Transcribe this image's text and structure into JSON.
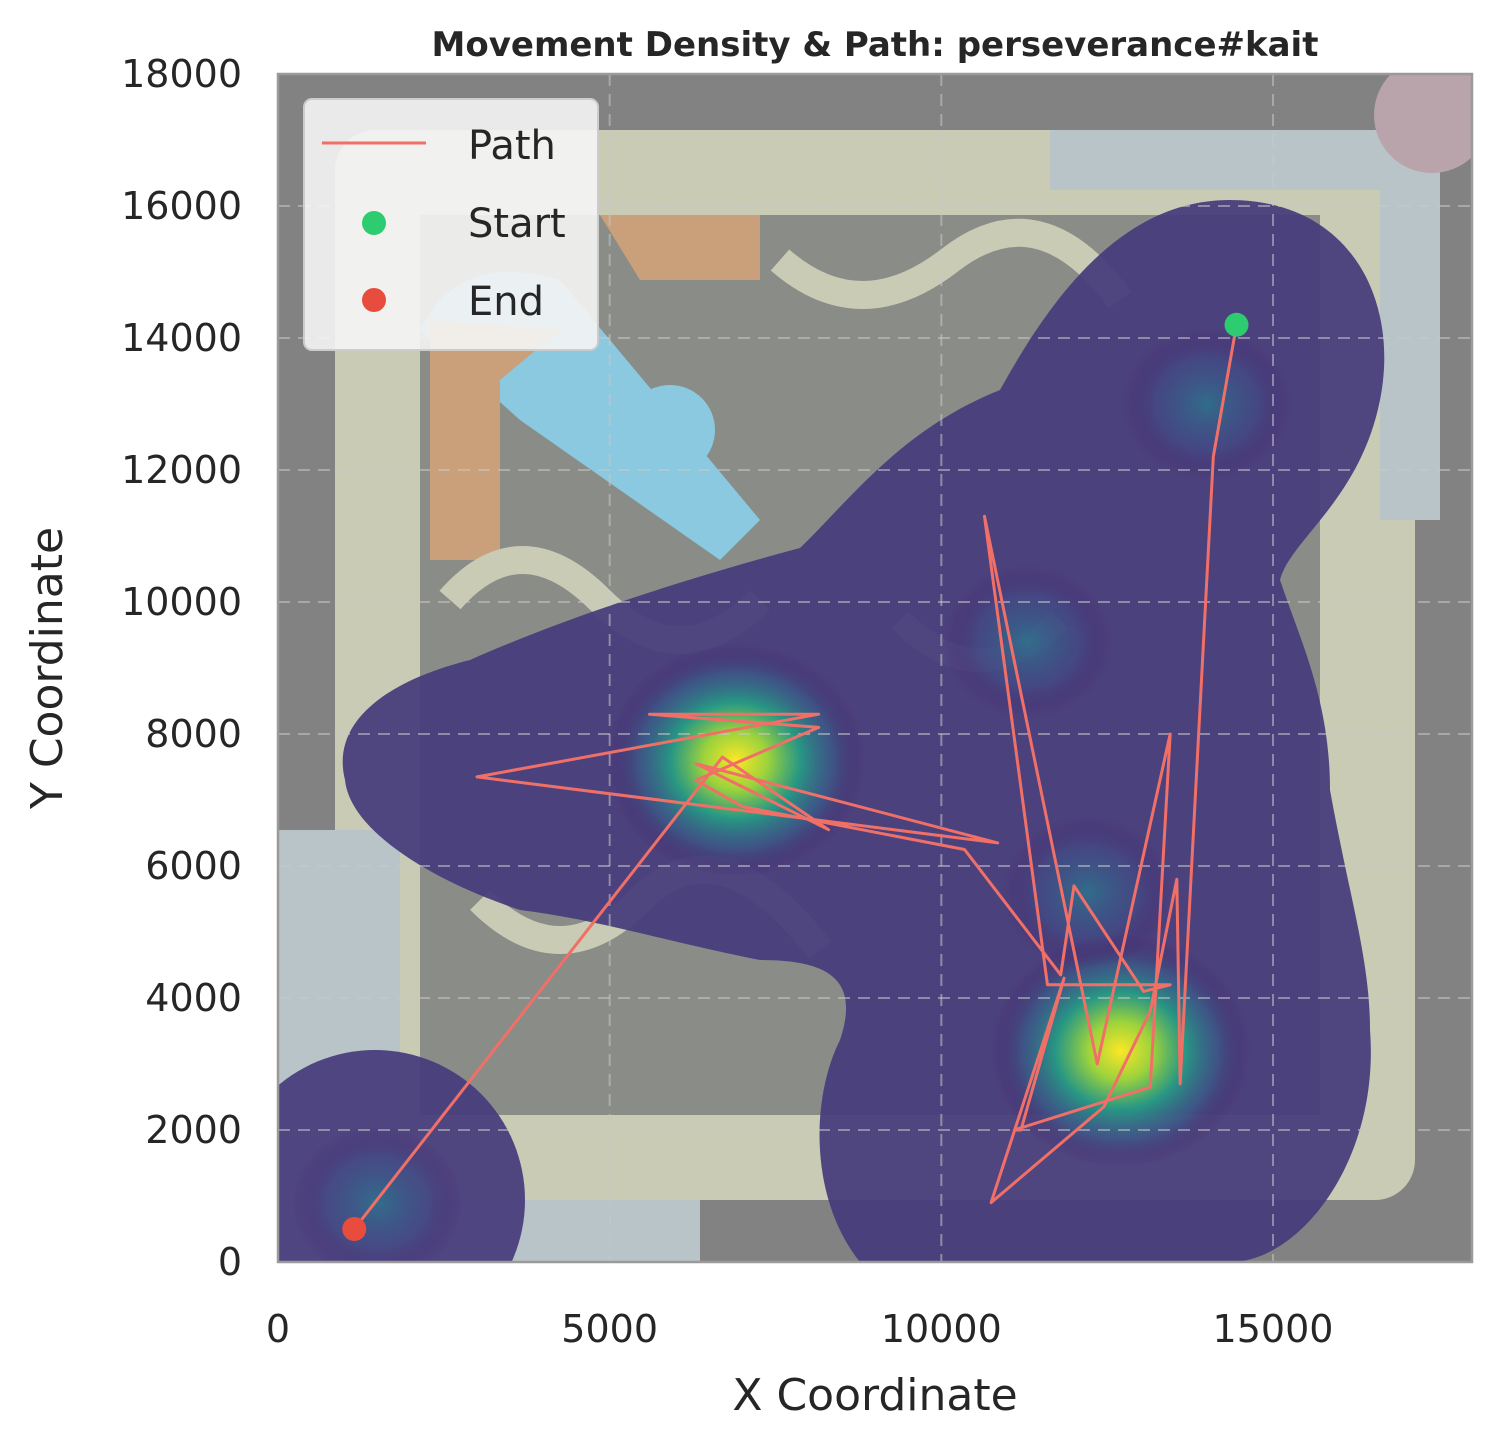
{
  "chart_data": {
    "type": "line",
    "title": "Movement Density & Path: perseverance#kait",
    "xlabel": "X Coordinate",
    "ylabel": "Y Coordinate",
    "xlim": [
      0,
      18000
    ],
    "ylim": [
      0,
      18000
    ],
    "xticks": [
      0,
      5000,
      10000,
      15000
    ],
    "yticks": [
      0,
      2000,
      4000,
      6000,
      8000,
      10000,
      12000,
      14000,
      16000,
      18000
    ],
    "grid": true,
    "legend_position": "top-left",
    "legend": [
      {
        "label": "Path",
        "kind": "line",
        "color": "#f07068"
      },
      {
        "label": "Start",
        "kind": "point",
        "color": "#2ecc71"
      },
      {
        "label": "End",
        "kind": "point",
        "color": "#e74c3c"
      }
    ],
    "path": {
      "name": "Path",
      "color": "#f07068",
      "x": [
        14450,
        14100,
        13600,
        13550,
        13150,
        12450,
        10750,
        11850,
        11200,
        11100,
        13150,
        13450,
        12350,
        10650,
        11600,
        13450,
        13050,
        12000,
        11800,
        10350,
        7000,
        6300,
        8150,
        5600,
        8150,
        3000,
        10850,
        6300,
        8300,
        6700,
        1150
      ],
      "y": [
        14200,
        12200,
        2700,
        5800,
        3800,
        2350,
        900,
        4300,
        2000,
        2000,
        2650,
        8000,
        3000,
        11300,
        4200,
        4200,
        4100,
        5700,
        4350,
        6250,
        6900,
        7300,
        8100,
        8300,
        8300,
        7350,
        6350,
        7550,
        6550,
        7650,
        500
      ]
    },
    "start": {
      "name": "Start",
      "x": 14450,
      "y": 14200,
      "color": "#2ecc71"
    },
    "end": {
      "name": "End",
      "x": 1150,
      "y": 500,
      "color": "#e74c3c"
    },
    "density_peaks": [
      {
        "x": 6900,
        "y": 7600,
        "weight": 1.0
      },
      {
        "x": 12700,
        "y": 3200,
        "weight": 1.0
      },
      {
        "x": 12200,
        "y": 5600,
        "weight": 0.45
      },
      {
        "x": 11300,
        "y": 9400,
        "weight": 0.35
      },
      {
        "x": 14000,
        "y": 13000,
        "weight": 0.3
      },
      {
        "x": 1500,
        "y": 900,
        "weight": 0.3
      }
    ],
    "colormap": "viridis"
  }
}
